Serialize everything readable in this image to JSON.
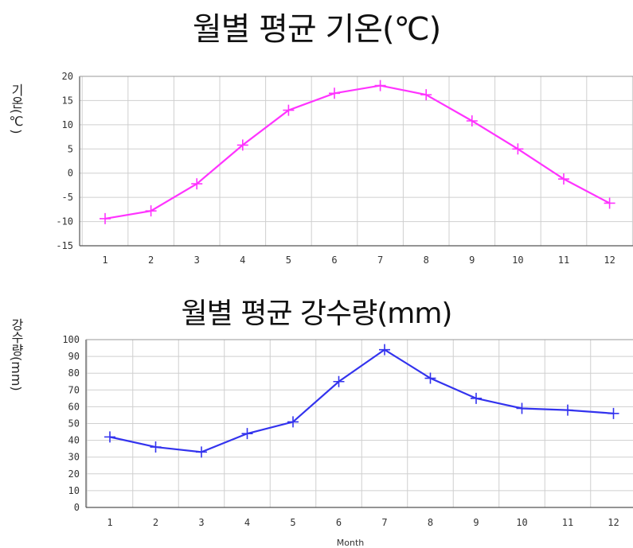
{
  "chart_data": [
    {
      "type": "line",
      "title": "월별 평균 기온(℃)",
      "xlabel": "",
      "ylabel": "기온(℃)",
      "categories": [
        "1",
        "2",
        "3",
        "4",
        "5",
        "6",
        "7",
        "8",
        "9",
        "10",
        "11",
        "12"
      ],
      "series": [
        {
          "values": [
            -9.4,
            -7.8,
            -2.2,
            5.8,
            13.0,
            16.5,
            18.1,
            16.2,
            10.8,
            5.0,
            -1.2,
            -6.2
          ]
        }
      ],
      "ylim": [
        -15,
        20
      ],
      "yticks": [
        "20",
        "15",
        "10",
        "5",
        "0",
        "-5",
        "-10",
        "-15"
      ],
      "grid": true,
      "color": "#ff33ff"
    },
    {
      "type": "line",
      "title": "월별 평균 강수량(mm)",
      "xlabel": "Month",
      "ylabel": "강수량(mm)",
      "categories": [
        "1",
        "2",
        "3",
        "4",
        "5",
        "6",
        "7",
        "8",
        "9",
        "10",
        "11",
        "12"
      ],
      "series": [
        {
          "values": [
            42,
            36,
            33,
            44,
            51,
            75,
            94,
            77,
            65,
            59,
            58,
            56
          ]
        }
      ],
      "ylim": [
        0,
        100
      ],
      "yticks": [
        "100",
        "90",
        "80",
        "70",
        "60",
        "50",
        "40",
        "30",
        "20",
        "10",
        "0"
      ],
      "grid": true,
      "color": "#3333ee"
    }
  ]
}
